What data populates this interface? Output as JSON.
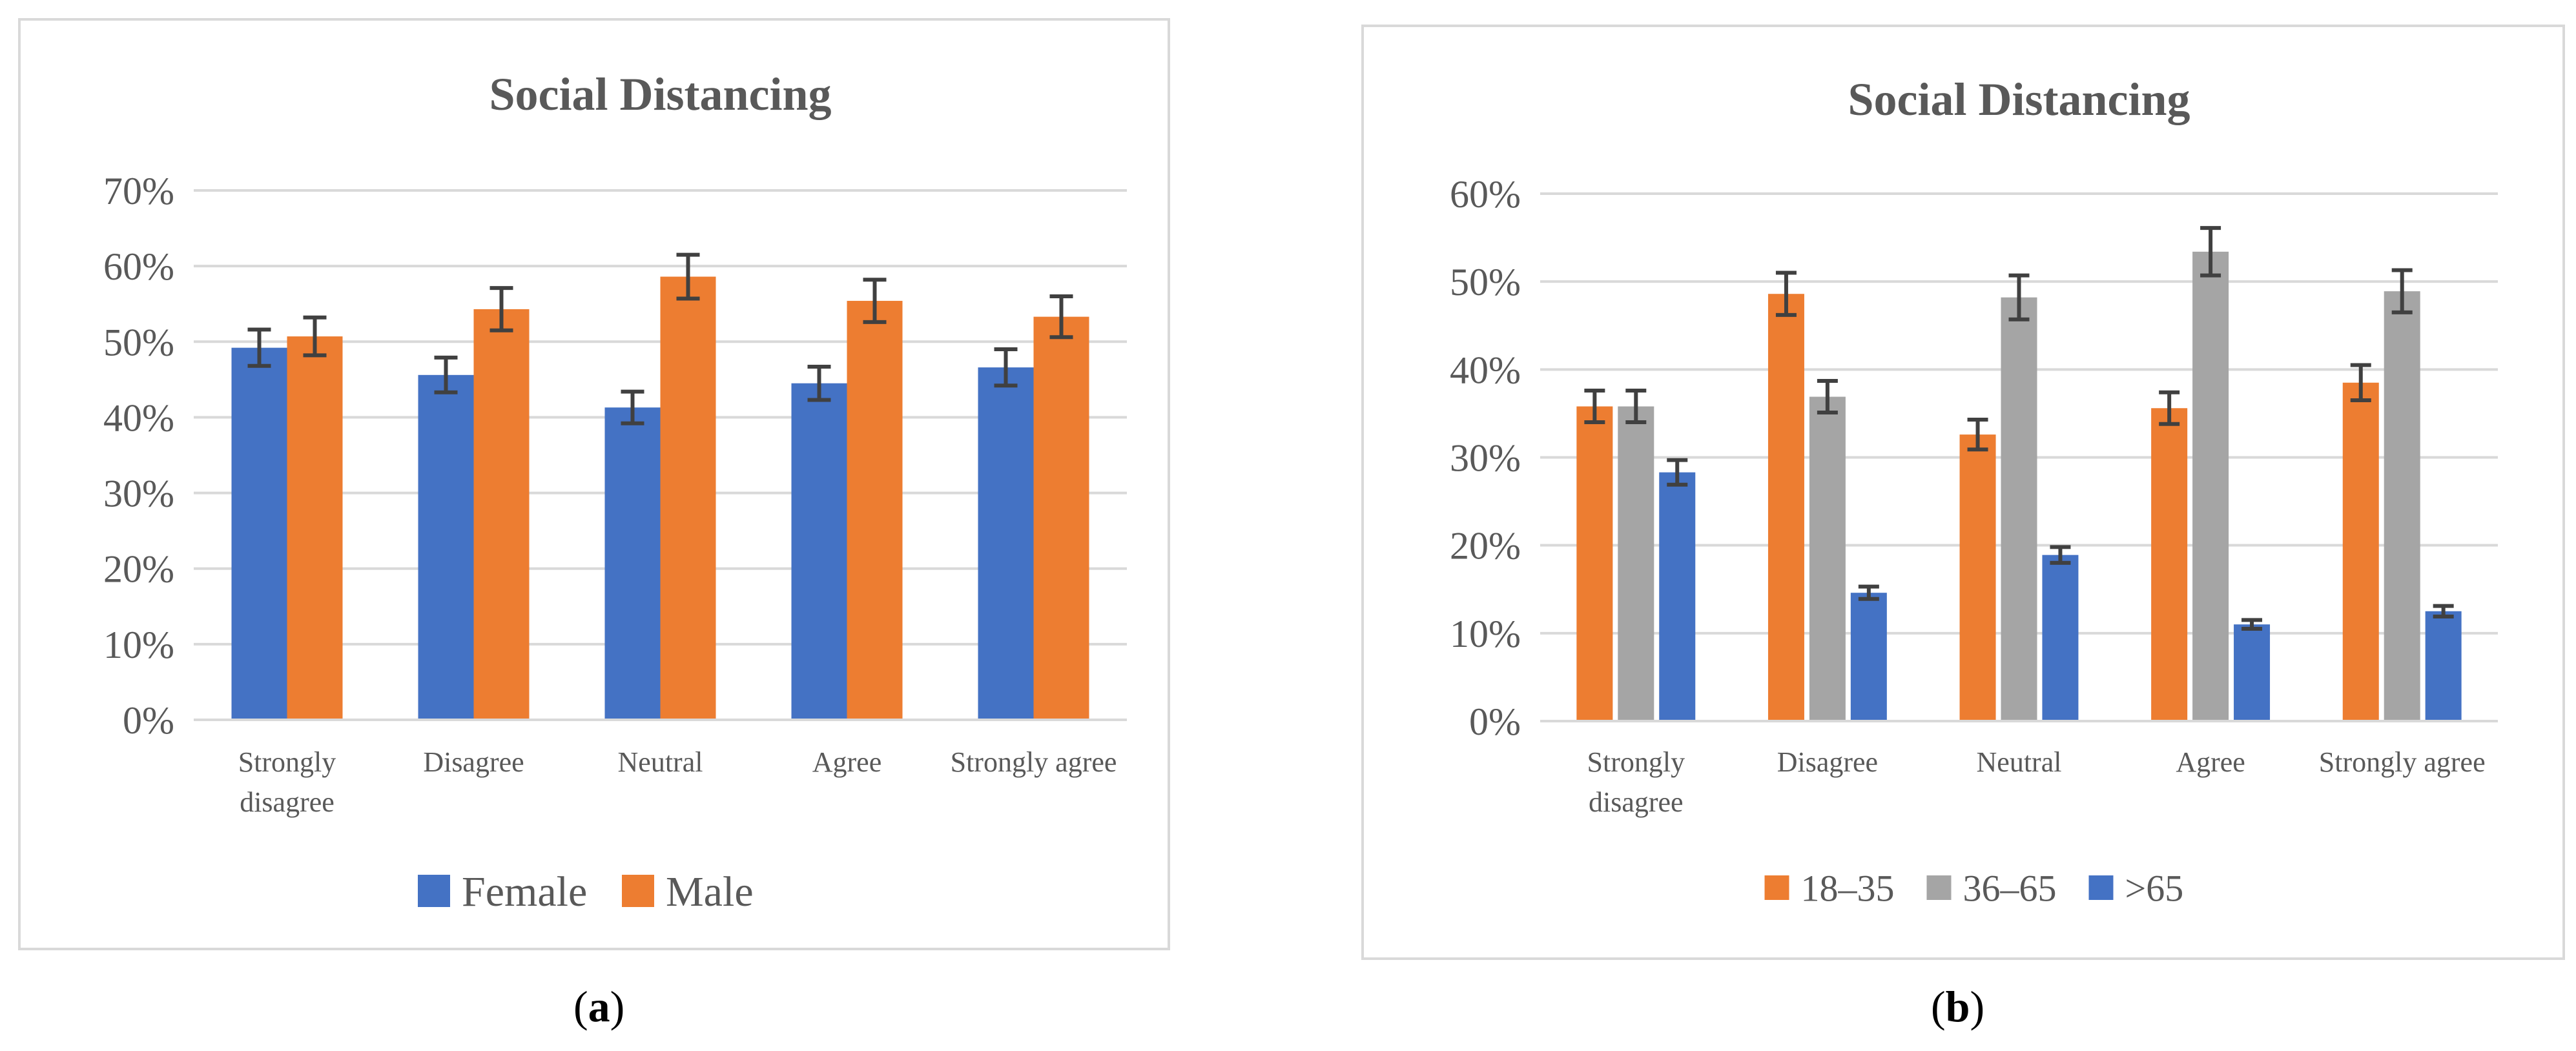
{
  "chart_data": [
    {
      "id": "a",
      "type": "bar",
      "title": "Social Distancing",
      "panel_label": "a",
      "categories": [
        [
          "Strongly",
          "disagree"
        ],
        [
          "Disagree"
        ],
        [
          "Neutral"
        ],
        [
          "Agree"
        ],
        [
          "Strongly agree"
        ]
      ],
      "series": [
        {
          "name": "Female",
          "color": "#4472C4",
          "values": [
            49.2,
            45.6,
            41.3,
            44.5,
            46.6
          ],
          "errors": [
            2.4,
            2.3,
            2.1,
            2.2,
            2.4
          ]
        },
        {
          "name": "Male",
          "color": "#ED7D31",
          "values": [
            50.7,
            54.3,
            58.6,
            55.4,
            53.3
          ],
          "errors": [
            2.5,
            2.8,
            2.9,
            2.8,
            2.7
          ]
        }
      ],
      "ylim": [
        0,
        70
      ],
      "yticks": [
        "0%",
        "10%",
        "20%",
        "30%",
        "40%",
        "50%",
        "60%",
        "70%"
      ],
      "xlabel": "",
      "ylabel": "",
      "grid": true,
      "legend": "bottom"
    },
    {
      "id": "b",
      "type": "bar",
      "title": "Social Distancing",
      "panel_label": "b",
      "categories": [
        [
          "Strongly",
          "disagree"
        ],
        [
          "Disagree"
        ],
        [
          "Neutral"
        ],
        [
          "Agree"
        ],
        [
          "Strongly agree"
        ]
      ],
      "series": [
        {
          "name": "18–35",
          "color": "#ED7D31",
          "values": [
            35.8,
            48.6,
            32.6,
            35.6,
            38.5
          ],
          "errors": [
            1.8,
            2.4,
            1.7,
            1.8,
            2.0
          ]
        },
        {
          "name": "36–65",
          "color": "#A5A5A5",
          "values": [
            35.8,
            36.9,
            48.2,
            53.4,
            48.9
          ],
          "errors": [
            1.8,
            1.8,
            2.5,
            2.7,
            2.4
          ]
        },
        {
          "name": ">65",
          "color": "#4472C4",
          "values": [
            28.3,
            14.6,
            18.9,
            11.0,
            12.5
          ],
          "errors": [
            1.4,
            0.7,
            0.9,
            0.5,
            0.6
          ]
        }
      ],
      "ylim": [
        0,
        60
      ],
      "yticks": [
        "0%",
        "10%",
        "20%",
        "30%",
        "40%",
        "50%",
        "60%"
      ],
      "xlabel": "",
      "ylabel": "",
      "grid": true,
      "legend": "bottom"
    }
  ]
}
